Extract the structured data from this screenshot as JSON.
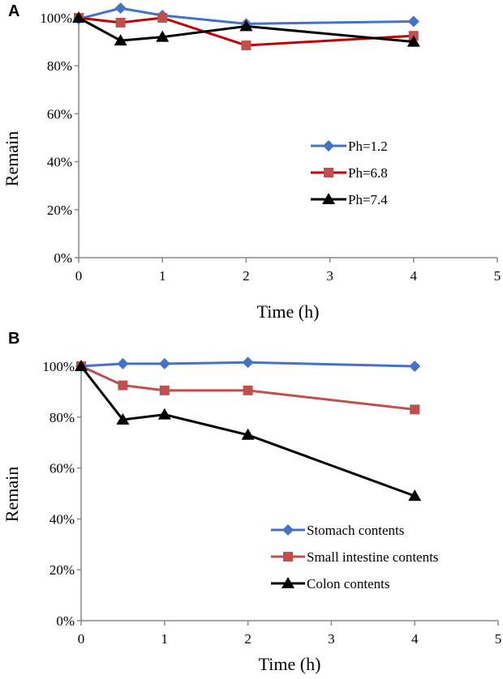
{
  "chart_data": [
    {
      "type": "line",
      "panel_label": "A",
      "xlabel": "Time (h)",
      "ylabel": "Remain",
      "xlim": [
        0,
        5
      ],
      "ylim": [
        0,
        100
      ],
      "x_ticks": [
        "0",
        "1",
        "2",
        "3",
        "4",
        "5"
      ],
      "y_ticks": [
        "0%",
        "20%",
        "40%",
        "60%",
        "80%",
        "100%"
      ],
      "grid": false,
      "legend_position": "center-right",
      "series": [
        {
          "name": "Ph=1.2",
          "color": "#4472C4",
          "marker": "diamond",
          "x": [
            0,
            0.5,
            1,
            2,
            4
          ],
          "values": [
            99.5,
            104,
            101,
            97.5,
            98.5
          ]
        },
        {
          "name": "Ph=6.8",
          "color": "#C0504D",
          "line_color": "#C00000",
          "marker": "square",
          "x": [
            0,
            0.5,
            1,
            2,
            4
          ],
          "values": [
            100,
            98,
            100,
            88.5,
            92.5
          ]
        },
        {
          "name": "Ph=7.4",
          "color": "#000000",
          "marker": "triangle",
          "x": [
            0,
            0.5,
            1,
            2,
            4
          ],
          "values": [
            100,
            90.5,
            92,
            96.5,
            90
          ]
        }
      ]
    },
    {
      "type": "line",
      "panel_label": "B",
      "xlabel": "Time (h)",
      "ylabel": "Remain",
      "xlim": [
        0,
        5
      ],
      "ylim": [
        0,
        100
      ],
      "x_ticks": [
        "0",
        "1",
        "2",
        "3",
        "4",
        "5"
      ],
      "y_ticks": [
        "0%",
        "20%",
        "40%",
        "60%",
        "80%",
        "100%"
      ],
      "grid": false,
      "legend_position": "bottom-right",
      "series": [
        {
          "name": "Stomach contents",
          "color": "#4472C4",
          "marker": "diamond",
          "x": [
            0,
            0.5,
            1,
            2,
            4
          ],
          "values": [
            100,
            101,
            101,
            101.5,
            100
          ]
        },
        {
          "name": "Small intestine contents",
          "color": "#C0504D",
          "marker": "square",
          "x": [
            0,
            0.5,
            1,
            2,
            4
          ],
          "values": [
            100,
            92.5,
            90.5,
            90.5,
            83
          ]
        },
        {
          "name": "Colon contents",
          "color": "#000000",
          "marker": "triangle",
          "x": [
            0,
            0.5,
            1,
            2,
            4
          ],
          "values": [
            100,
            79,
            81,
            73,
            49
          ]
        }
      ]
    }
  ]
}
